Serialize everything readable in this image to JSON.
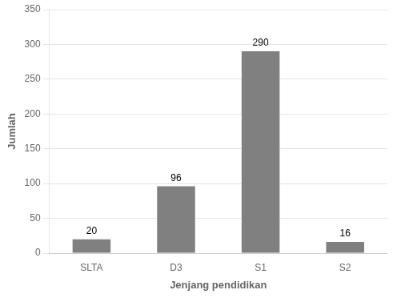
{
  "chart_data": {
    "type": "bar",
    "categories": [
      "SLTA",
      "D3",
      "S1",
      "S2"
    ],
    "values": [
      20,
      96,
      290,
      16
    ],
    "color": "#808080",
    "xlabel": "Jenjang pendidikan",
    "ylabel": "Jumlah",
    "ylim": [
      0,
      350
    ],
    "yticks": [
      0,
      50,
      100,
      150,
      200,
      250,
      300,
      350
    ],
    "grid": true,
    "data_labels": true
  }
}
